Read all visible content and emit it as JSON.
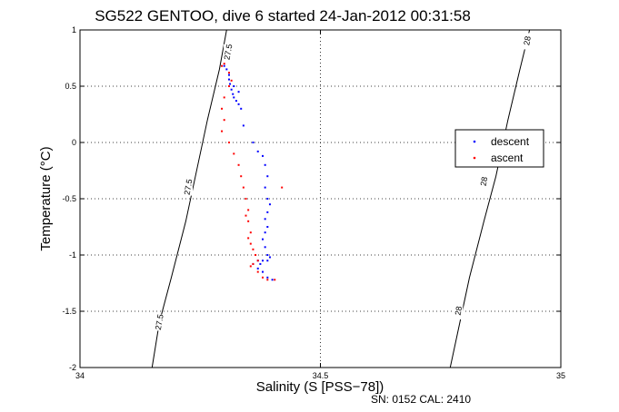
{
  "chart_data": {
    "type": "scatter",
    "title": "SG522 GENTOO, dive 6 started 24-Jan-2012 00:31:58",
    "xlabel": "Salinity (S [PSS−78])",
    "ylabel": "Temperature (°C)",
    "xlim": [
      34,
      35
    ],
    "ylim": [
      -2,
      1
    ],
    "xticks": [
      34,
      34.5,
      35
    ],
    "xtick_labels": [
      "34",
      "34.5",
      "35"
    ],
    "yticks": [
      -2,
      -1.5,
      -1,
      -0.5,
      0,
      0.5,
      1
    ],
    "ytick_labels": [
      "-2",
      "-1.5",
      "-1",
      "-0.5",
      "0",
      "0.5",
      "1"
    ],
    "grid": true,
    "legend_position": "right",
    "footer": "SN: 0152  CAL: 2410",
    "contours": [
      {
        "label": "27.5",
        "points": [
          [
            34.15,
            -2.0
          ],
          [
            34.165,
            -1.6
          ],
          [
            34.19,
            -1.2
          ],
          [
            34.22,
            -0.7
          ],
          [
            34.24,
            -0.3
          ],
          [
            34.265,
            0.2
          ],
          [
            34.29,
            0.65
          ],
          [
            34.305,
            1.0
          ]
        ],
        "label_positions": [
          [
            34.165,
            -1.6
          ],
          [
            34.225,
            -0.4
          ],
          [
            34.308,
            0.8
          ]
        ]
      },
      {
        "label": "28",
        "points": [
          [
            34.77,
            -2.0
          ],
          [
            34.79,
            -1.6
          ],
          [
            34.81,
            -1.2
          ],
          [
            34.84,
            -0.7
          ],
          [
            34.865,
            -0.3
          ],
          [
            34.89,
            0.2
          ],
          [
            34.915,
            0.65
          ],
          [
            34.935,
            1.0
          ]
        ],
        "label_positions": [
          [
            34.787,
            -1.5
          ],
          [
            34.84,
            -0.35
          ],
          [
            34.93,
            0.9
          ]
        ]
      }
    ],
    "series": [
      {
        "name": "descent",
        "color": "#0000ff",
        "points": [
          [
            34.3,
            0.68
          ],
          [
            34.305,
            0.65
          ],
          [
            34.31,
            0.6
          ],
          [
            34.31,
            0.56
          ],
          [
            34.312,
            0.52
          ],
          [
            34.315,
            0.47
          ],
          [
            34.318,
            0.43
          ],
          [
            34.32,
            0.4
          ],
          [
            34.325,
            0.37
          ],
          [
            34.33,
            0.34
          ],
          [
            34.335,
            0.3
          ],
          [
            34.33,
            0.45
          ],
          [
            34.32,
            0.5
          ],
          [
            34.34,
            0.15
          ],
          [
            34.36,
            0.0
          ],
          [
            34.37,
            -0.08
          ],
          [
            34.38,
            -0.12
          ],
          [
            34.385,
            -0.2
          ],
          [
            34.39,
            -0.3
          ],
          [
            34.385,
            -0.4
          ],
          [
            34.39,
            -0.5
          ],
          [
            34.395,
            -0.55
          ],
          [
            34.39,
            -0.62
          ],
          [
            34.385,
            -0.68
          ],
          [
            34.39,
            -0.75
          ],
          [
            34.385,
            -0.8
          ],
          [
            34.38,
            -0.86
          ],
          [
            34.385,
            -0.93
          ],
          [
            34.39,
            -1.0
          ],
          [
            34.395,
            -1.02
          ],
          [
            34.39,
            -1.05
          ],
          [
            34.38,
            -1.05
          ],
          [
            34.375,
            -1.08
          ],
          [
            34.37,
            -1.05
          ],
          [
            34.36,
            -1.08
          ],
          [
            34.37,
            -1.12
          ],
          [
            34.38,
            -1.15
          ],
          [
            34.39,
            -1.2
          ],
          [
            34.4,
            -1.22
          ]
        ]
      },
      {
        "name": "ascent",
        "color": "#ff0000",
        "points": [
          [
            34.295,
            0.68
          ],
          [
            34.3,
            0.7
          ],
          [
            34.31,
            0.62
          ],
          [
            34.315,
            0.55
          ],
          [
            34.31,
            0.5
          ],
          [
            34.3,
            0.4
          ],
          [
            34.295,
            0.3
          ],
          [
            34.3,
            0.2
          ],
          [
            34.295,
            0.1
          ],
          [
            34.31,
            0.0
          ],
          [
            34.32,
            -0.1
          ],
          [
            34.33,
            -0.2
          ],
          [
            34.335,
            -0.3
          ],
          [
            34.34,
            -0.4
          ],
          [
            34.345,
            -0.5
          ],
          [
            34.35,
            -0.6
          ],
          [
            34.345,
            -0.65
          ],
          [
            34.35,
            -0.7
          ],
          [
            34.355,
            -0.8
          ],
          [
            34.35,
            -0.85
          ],
          [
            34.355,
            -0.9
          ],
          [
            34.36,
            -0.95
          ],
          [
            34.365,
            -1.0
          ],
          [
            34.37,
            -1.05
          ],
          [
            34.36,
            -1.08
          ],
          [
            34.355,
            -1.1
          ],
          [
            34.37,
            -1.15
          ],
          [
            34.38,
            -1.2
          ],
          [
            34.39,
            -1.22
          ],
          [
            34.405,
            -1.22
          ],
          [
            34.42,
            -0.4
          ]
        ]
      }
    ]
  }
}
